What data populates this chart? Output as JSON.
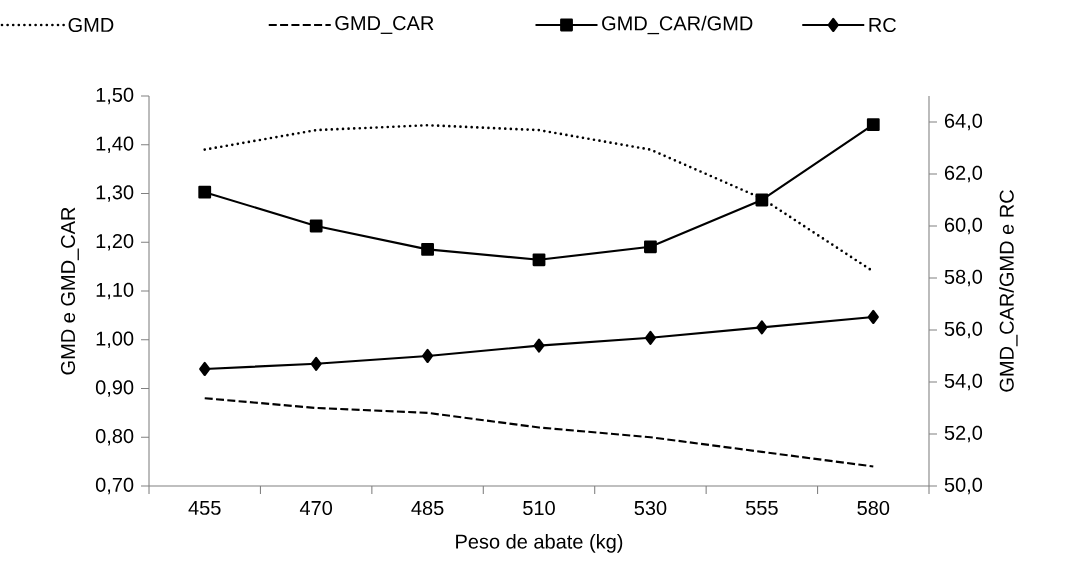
{
  "chart_data": {
    "type": "line",
    "xlabel": "Peso de abate (kg)",
    "ylabel": "GMD e GMD_CAR",
    "y2label": "GMD_CAR/GMD e RC",
    "categories": [
      "455",
      "470",
      "485",
      "510",
      "530",
      "555",
      "580"
    ],
    "series": [
      {
        "name": "GMD",
        "color": "#000000",
        "line_style": "dotted",
        "marker": "none",
        "values": [
          1.39,
          1.43,
          1.44,
          1.43,
          1.39,
          1.29,
          1.14
        ]
      },
      {
        "name": "GMD_CAR",
        "color": "#000000",
        "line_style": "dashed",
        "marker": "none",
        "values": [
          0.88,
          0.86,
          0.85,
          0.82,
          0.8,
          0.77,
          0.74
        ]
      },
      {
        "name": "GMD_CAR/GMD",
        "color": "#000000",
        "line_style": "solid",
        "marker": "square",
        "axis": "y2",
        "values": [
          61.3,
          60.0,
          59.1,
          58.7,
          59.2,
          61.0,
          63.9
        ]
      },
      {
        "name": "RC",
        "color": "#000000",
        "line_style": "solid",
        "marker": "diamond",
        "axis": "y2",
        "values": [
          54.5,
          54.7,
          55.0,
          55.4,
          55.7,
          56.1,
          56.5
        ]
      }
    ],
    "ylim": [
      0.7,
      1.5
    ],
    "yticks": [
      {
        "value": 0.7,
        "label": "0,70"
      },
      {
        "value": 0.8,
        "label": "0,80"
      },
      {
        "value": 0.9,
        "label": "0,90"
      },
      {
        "value": 1.0,
        "label": "1,00"
      },
      {
        "value": 1.1,
        "label": "1,10"
      },
      {
        "value": 1.2,
        "label": "1,20"
      },
      {
        "value": 1.3,
        "label": "1,30"
      },
      {
        "value": 1.4,
        "label": "1,40"
      },
      {
        "value": 1.5,
        "label": "1,50"
      }
    ],
    "y2lim": [
      50,
      65
    ],
    "y2ticks": [
      {
        "value": 50,
        "label": "50,0"
      },
      {
        "value": 52,
        "label": "52,0"
      },
      {
        "value": 54,
        "label": "54,0"
      },
      {
        "value": 56,
        "label": "56,0"
      },
      {
        "value": 58,
        "label": "58,0"
      },
      {
        "value": 60,
        "label": "60,0"
      },
      {
        "value": 62,
        "label": "62,0"
      },
      {
        "value": 64,
        "label": "64,0"
      }
    ],
    "grid": false,
    "legend": "top"
  }
}
